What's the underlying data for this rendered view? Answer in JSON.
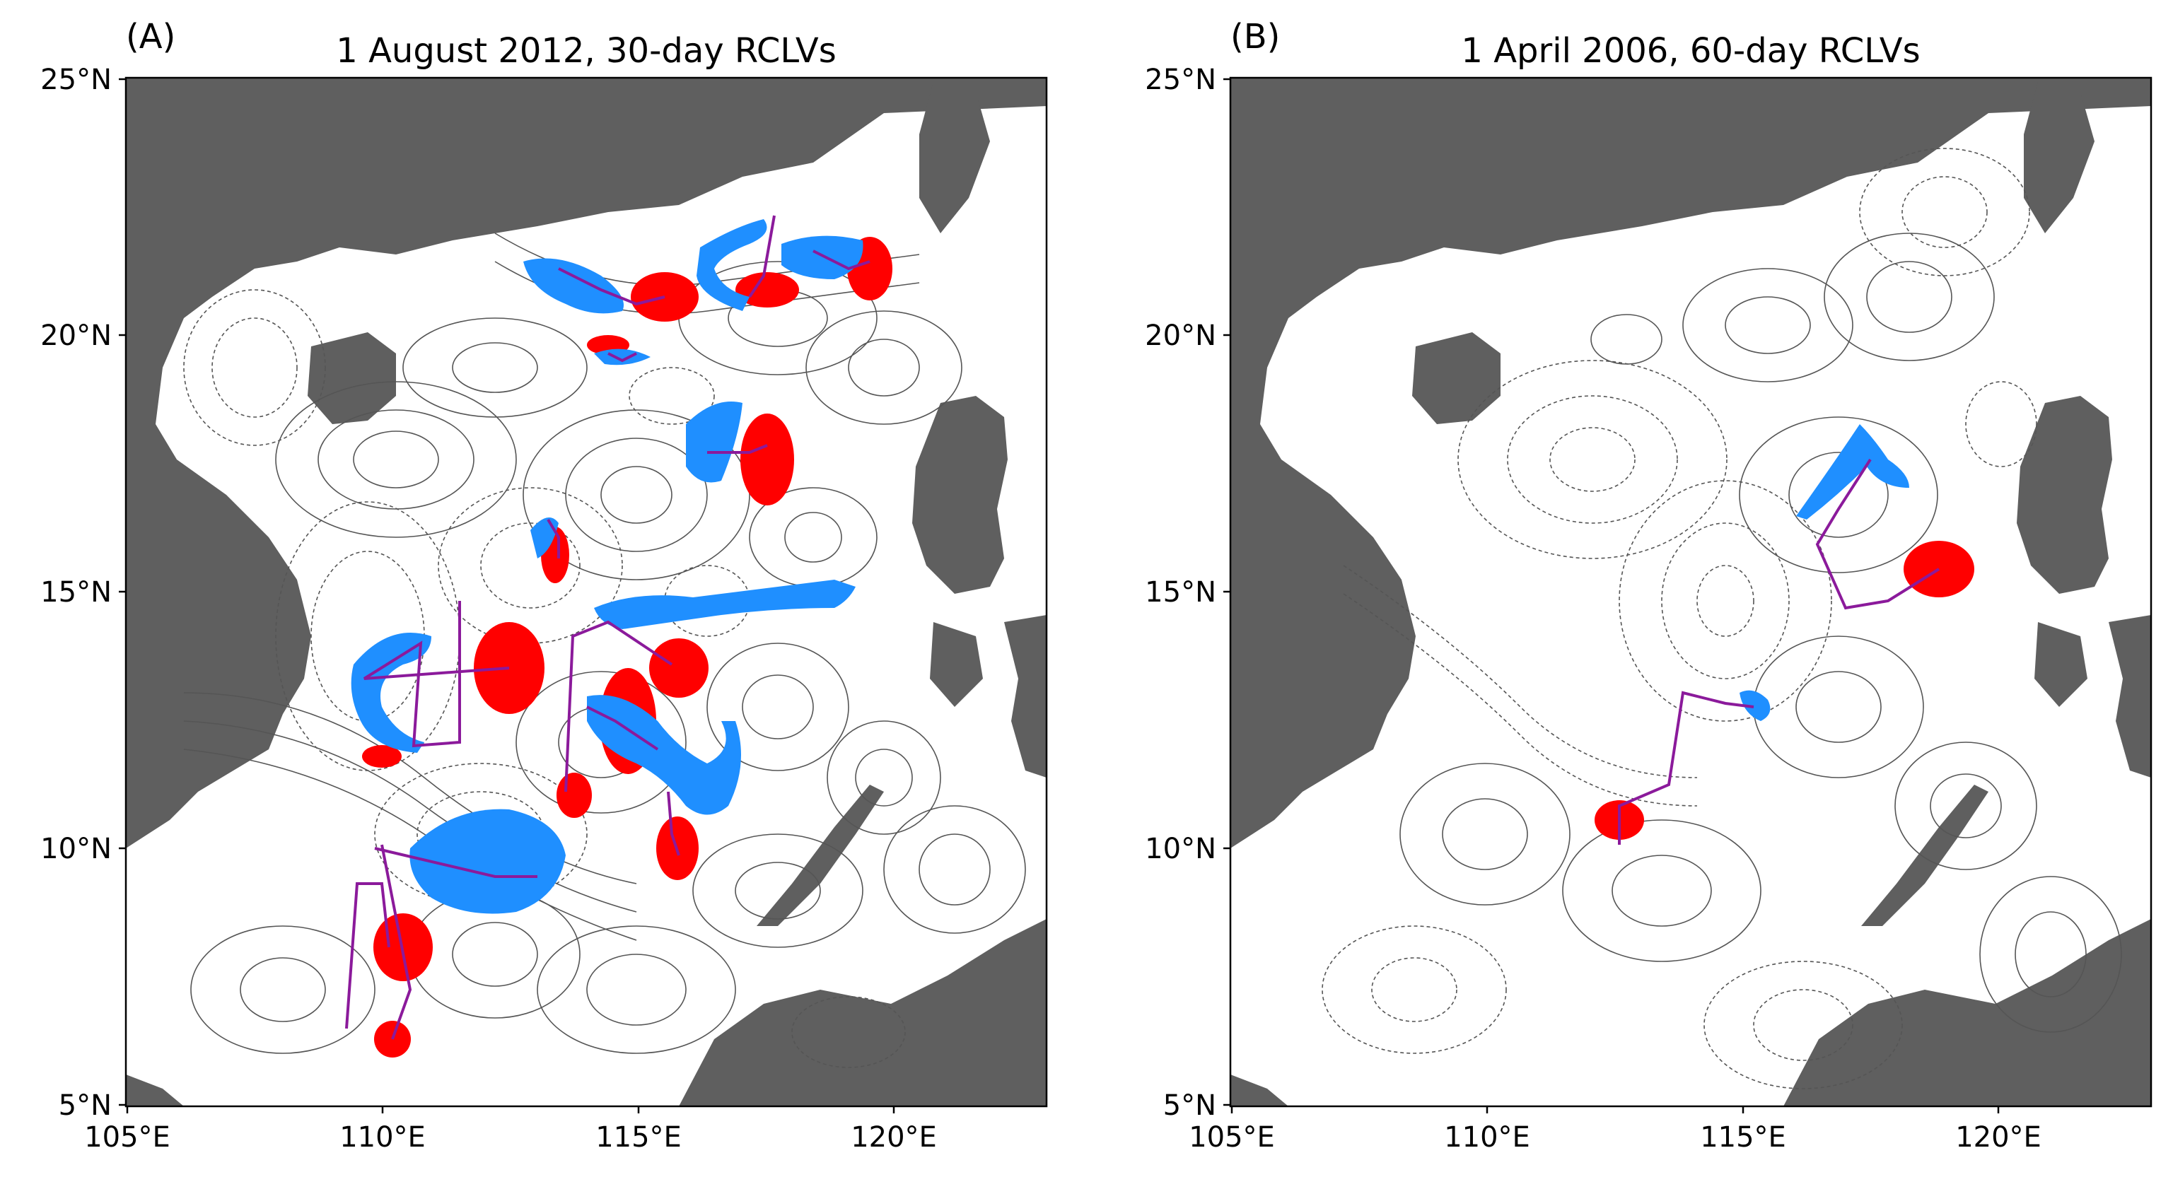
{
  "figure": {
    "panels": [
      {
        "id": "A",
        "letter": "(A)",
        "title": "1 August 2012, 30-day RCLVs",
        "yticks": [
          "25°N",
          "20°N",
          "15°N",
          "10°N",
          "5°N"
        ],
        "xticks": [
          "105°E",
          "110°E",
          "115°E",
          "120°E"
        ]
      },
      {
        "id": "B",
        "letter": "(B)",
        "title": "1 April 2006, 60-day RCLVs",
        "yticks": [
          "25°N",
          "20°N",
          "15°N",
          "10°N",
          "5°N"
        ],
        "xticks": [
          "105°E",
          "110°E",
          "115°E",
          "120°E"
        ]
      }
    ]
  },
  "colors": {
    "land": "#5f5f5f",
    "contour": "#555555",
    "anticyclonic": "#ff0000",
    "cyclonic": "#1f8fff",
    "track": "#8b1a9b"
  }
}
